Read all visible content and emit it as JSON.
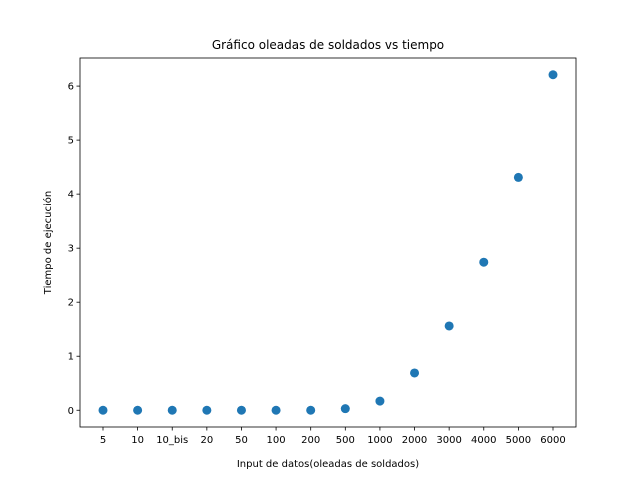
{
  "chart_data": {
    "type": "scatter",
    "title": "Gráfico oleadas de soldados vs tiempo",
    "xlabel": "Input de datos(oleadas de soldados)",
    "ylabel": "Tiempo de ejecución",
    "categories": [
      "5",
      "10",
      "10_bis",
      "20",
      "50",
      "100",
      "200",
      "500",
      "1000",
      "2000",
      "3000",
      "4000",
      "5000",
      "6000"
    ],
    "values": [
      0.0,
      0.0,
      0.0,
      0.0,
      0.0,
      0.0,
      0.0,
      0.03,
      0.17,
      0.69,
      1.56,
      2.74,
      4.31,
      6.21
    ],
    "yticks": [
      0,
      1,
      2,
      3,
      4,
      5,
      6
    ],
    "ylim": [
      -0.31,
      6.52
    ],
    "grid": false,
    "legend": "none",
    "marker_color": "#1f77b4"
  }
}
